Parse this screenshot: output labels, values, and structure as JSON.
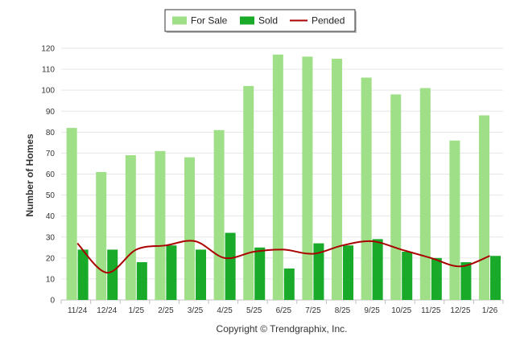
{
  "chart_data": {
    "type": "bar",
    "categories": [
      "11/24",
      "12/24",
      "1/25",
      "2/25",
      "3/25",
      "4/25",
      "5/25",
      "6/25",
      "7/25",
      "8/25",
      "9/25",
      "10/25",
      "11/25",
      "12/25",
      "1/26"
    ],
    "series": [
      {
        "name": "For Sale",
        "type": "bar",
        "color": "#9fdf87",
        "values": [
          82,
          61,
          69,
          71,
          68,
          81,
          102,
          117,
          116,
          115,
          106,
          98,
          101,
          76,
          88
        ]
      },
      {
        "name": "Sold",
        "type": "bar",
        "color": "#1aaa2a",
        "values": [
          24,
          24,
          18,
          26,
          24,
          32,
          25,
          15,
          27,
          26,
          29,
          23,
          20,
          18,
          21
        ]
      },
      {
        "name": "Pended",
        "type": "line",
        "color": "#aa0000",
        "values": [
          27,
          13,
          24,
          26,
          28,
          20,
          23,
          24,
          22,
          26,
          28,
          24,
          20,
          16,
          21
        ]
      }
    ],
    "xlabel": "",
    "ylabel": "Number of Homes",
    "ylim": [
      0,
      120
    ],
    "yticks": [
      0,
      10,
      20,
      30,
      40,
      50,
      60,
      70,
      80,
      90,
      100,
      110,
      120
    ],
    "grid": true,
    "legend_position": "top-center"
  },
  "footer": {
    "copyright": "Copyright © Trendgraphix, Inc."
  }
}
